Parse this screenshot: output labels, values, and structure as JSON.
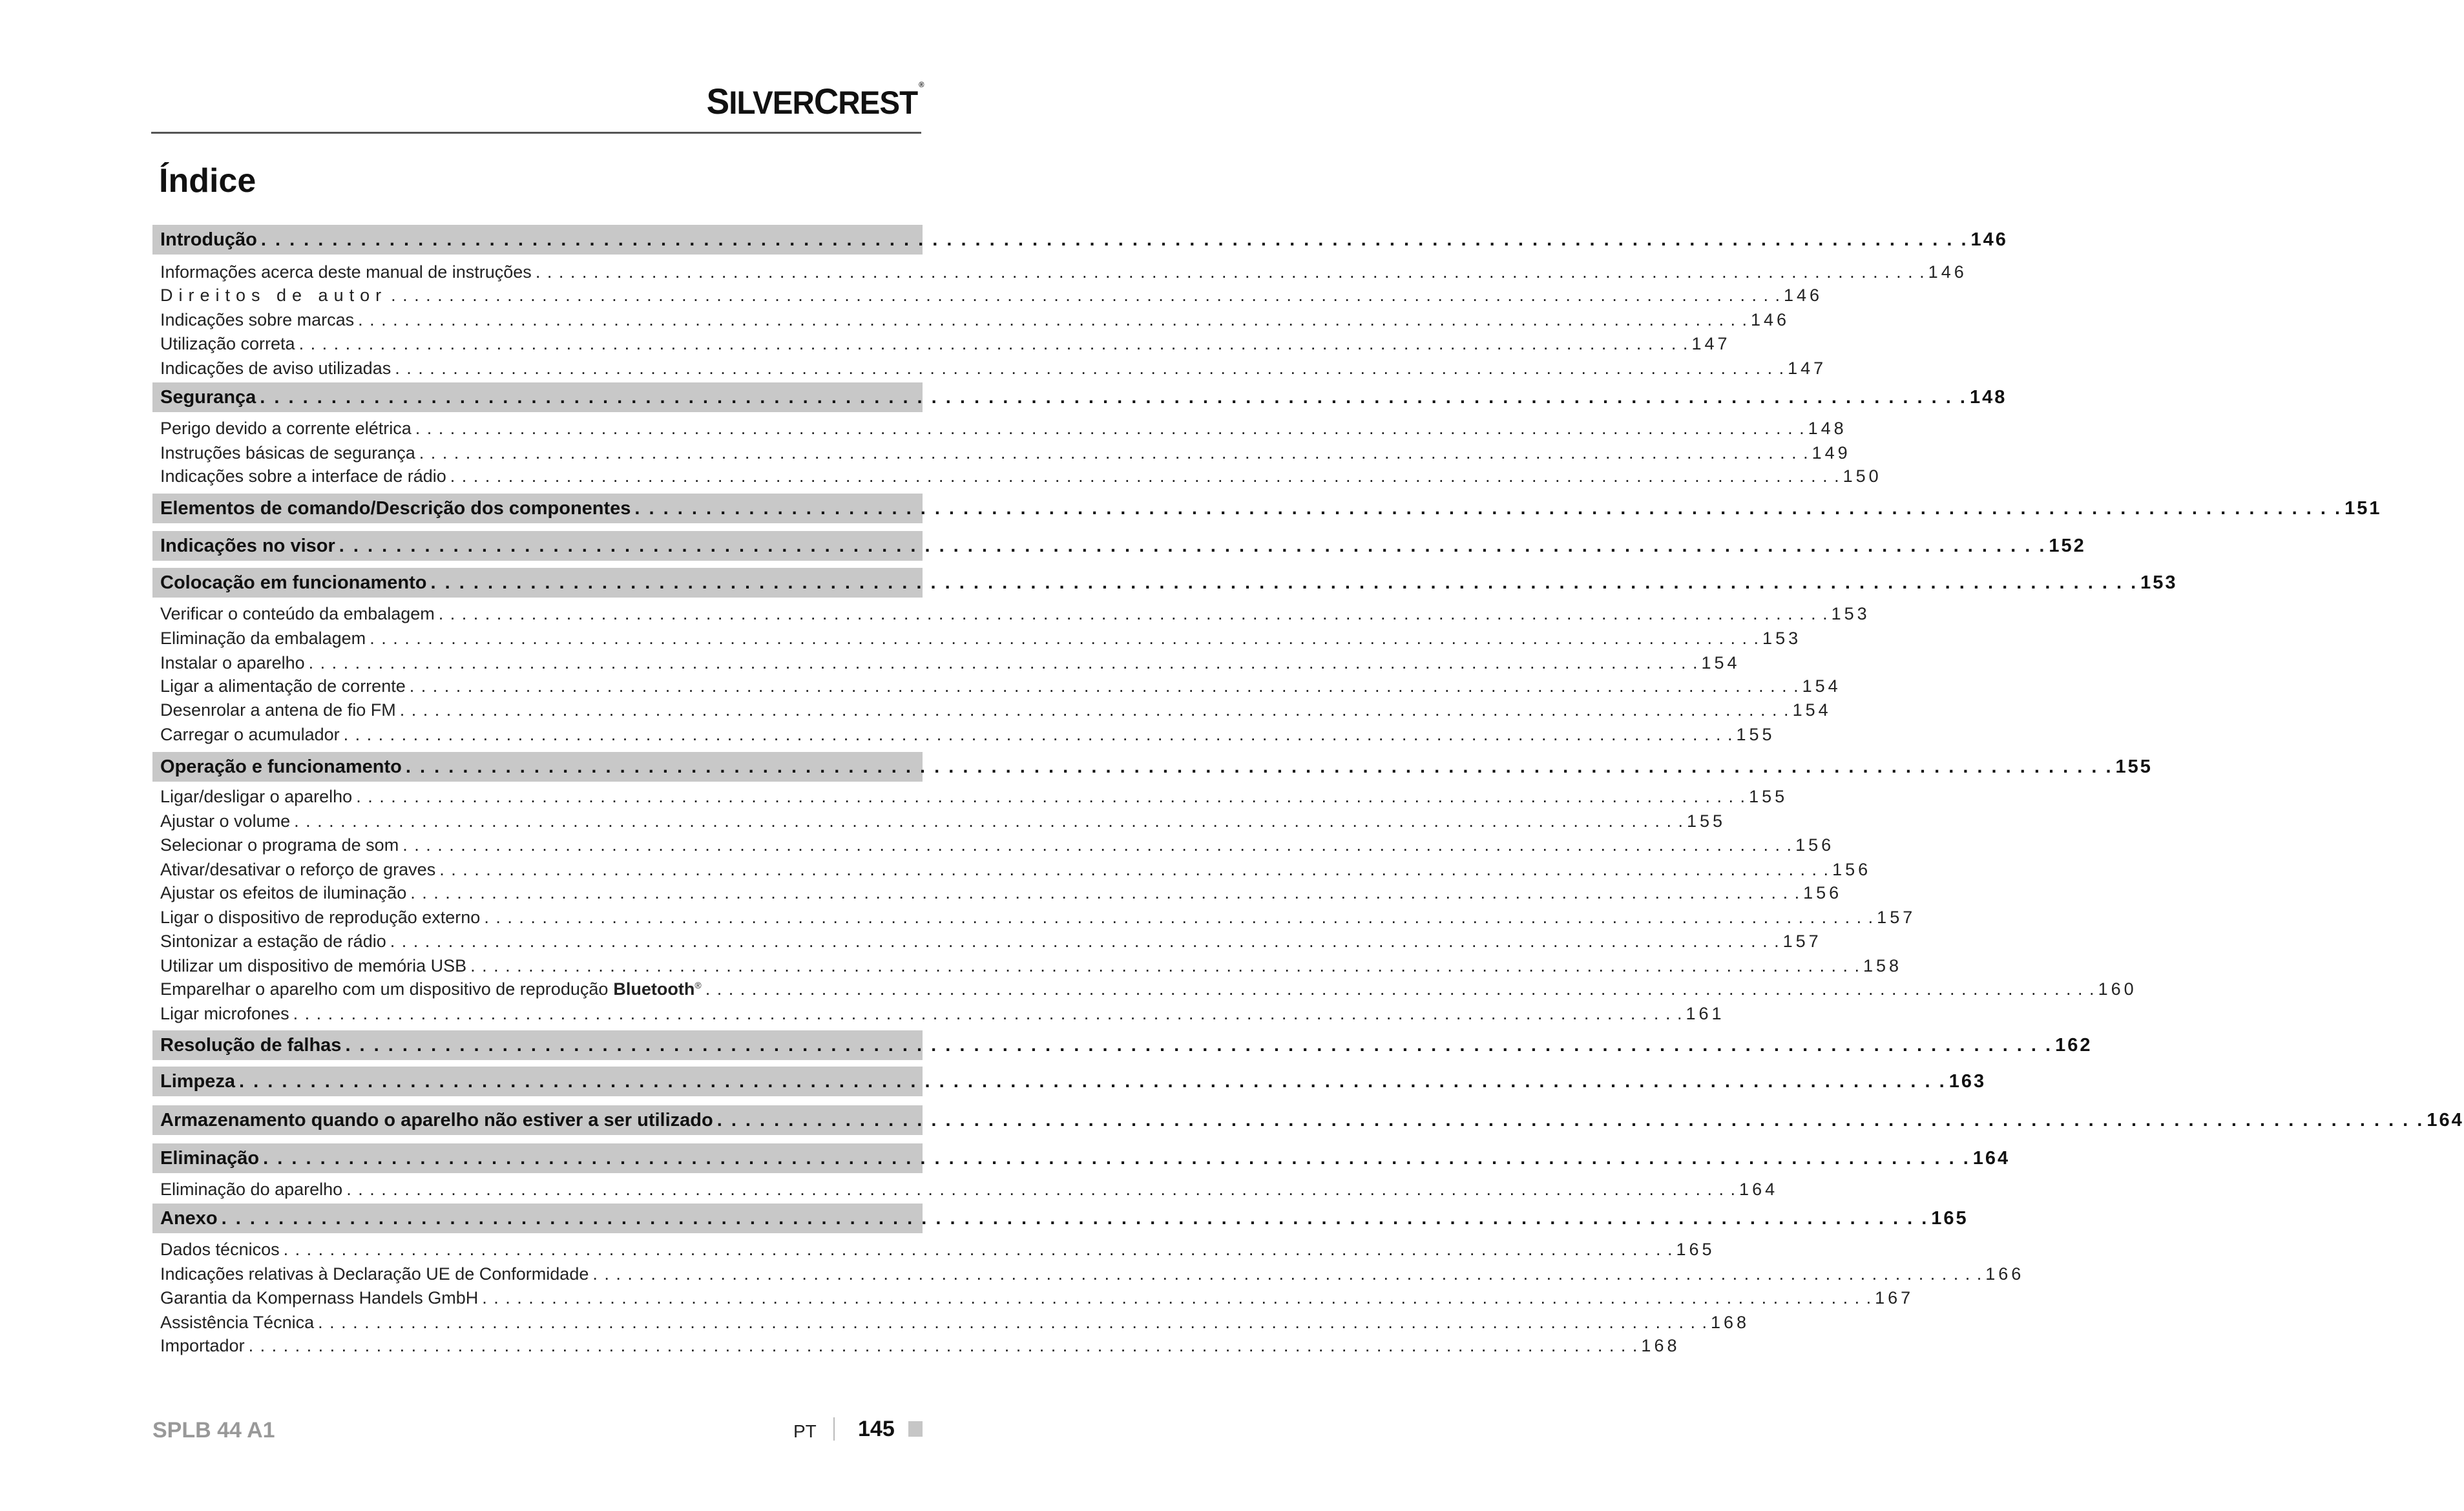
{
  "header": {
    "logo": "SilverCrest",
    "logo_mark": "®"
  },
  "title": "Índice",
  "toc": [
    {
      "type": "band",
      "label": "Introdução",
      "page": "146"
    },
    {
      "type": "sub",
      "label": "Informações acerca deste manual de instruções",
      "page": "146"
    },
    {
      "type": "sub",
      "label": "Direitos de autor",
      "page": "146",
      "wide": true
    },
    {
      "type": "sub",
      "label": "Indicações sobre marcas",
      "page": "146"
    },
    {
      "type": "sub",
      "label": "Utilização correta",
      "page": "147"
    },
    {
      "type": "sub",
      "label": "Indicações de aviso utilizadas",
      "page": "147"
    },
    {
      "type": "band",
      "label": "Segurança",
      "page": "148"
    },
    {
      "type": "sub",
      "label": "Perigo devido a corrente elétrica",
      "page": "148"
    },
    {
      "type": "sub",
      "label": "Instruções básicas de segurança",
      "page": "149"
    },
    {
      "type": "sub",
      "label": "Indicações sobre a interface de rádio",
      "page": "150"
    },
    {
      "type": "band",
      "label": "Elementos de comando/Descrição dos componentes",
      "page": "151"
    },
    {
      "type": "band",
      "label": "Indicações no visor",
      "page": "152"
    },
    {
      "type": "band",
      "label": "Colocação em funcionamento",
      "page": "153"
    },
    {
      "type": "sub",
      "label": "Verificar o conteúdo da embalagem",
      "page": "153"
    },
    {
      "type": "sub",
      "label": "Eliminação da embalagem",
      "page": "153"
    },
    {
      "type": "sub",
      "label": "Instalar o aparelho",
      "page": "154"
    },
    {
      "type": "sub",
      "label": "Ligar a alimentação de corrente",
      "page": "154"
    },
    {
      "type": "sub",
      "label": "Desenrolar a antena de fio FM",
      "page": "154"
    },
    {
      "type": "sub",
      "label": "Carregar o acumulador",
      "page": "155"
    },
    {
      "type": "band",
      "label": "Operação e funcionamento",
      "page": "155"
    },
    {
      "type": "sub",
      "label": "Ligar/desligar o aparelho",
      "page": "155"
    },
    {
      "type": "sub",
      "label": "Ajustar o volume",
      "page": "155"
    },
    {
      "type": "sub",
      "label": "Selecionar o programa de som",
      "page": "156"
    },
    {
      "type": "sub",
      "label": "Ativar/desativar o reforço de graves",
      "page": "156"
    },
    {
      "type": "sub",
      "label": "Ajustar os efeitos de iluminação",
      "page": "156"
    },
    {
      "type": "sub",
      "label": "Ligar o dispositivo de reprodução externo",
      "page": "157"
    },
    {
      "type": "sub",
      "label": "Sintonizar a estação de rádio",
      "page": "157"
    },
    {
      "type": "sub",
      "label": "Utilizar um dispositivo de memória USB",
      "page": "158"
    },
    {
      "type": "sub",
      "label": "Emparelhar o aparelho com um dispositivo de reprodução",
      "brand": "Bluetooth",
      "brand_mark": "®",
      "page": "160"
    },
    {
      "type": "sub",
      "label": "Ligar microfones",
      "page": "161"
    },
    {
      "type": "band",
      "label": "Resolução de falhas",
      "page": "162"
    },
    {
      "type": "band",
      "label": "Limpeza",
      "page": "163"
    },
    {
      "type": "band",
      "label": "Armazenamento quando o aparelho não estiver a ser utilizado",
      "page": "164"
    },
    {
      "type": "band",
      "label": "Eliminação",
      "page": "164"
    },
    {
      "type": "sub",
      "label": "Eliminação do aparelho",
      "page": "164"
    },
    {
      "type": "band",
      "label": "Anexo",
      "page": "165"
    },
    {
      "type": "sub",
      "label": "Dados técnicos",
      "page": "165"
    },
    {
      "type": "sub",
      "label": "Indicações relativas à Declaração UE de Conformidade",
      "page": "166"
    },
    {
      "type": "sub",
      "label": "Garantia da Kompernass Handels GmbH",
      "page": "167"
    },
    {
      "type": "sub",
      "label": "Assistência Técnica",
      "page": "168"
    },
    {
      "type": "sub",
      "label": "Importador",
      "page": "168"
    }
  ],
  "footer": {
    "model": "SPLB 44 A1",
    "language": "PT",
    "page": "145"
  }
}
